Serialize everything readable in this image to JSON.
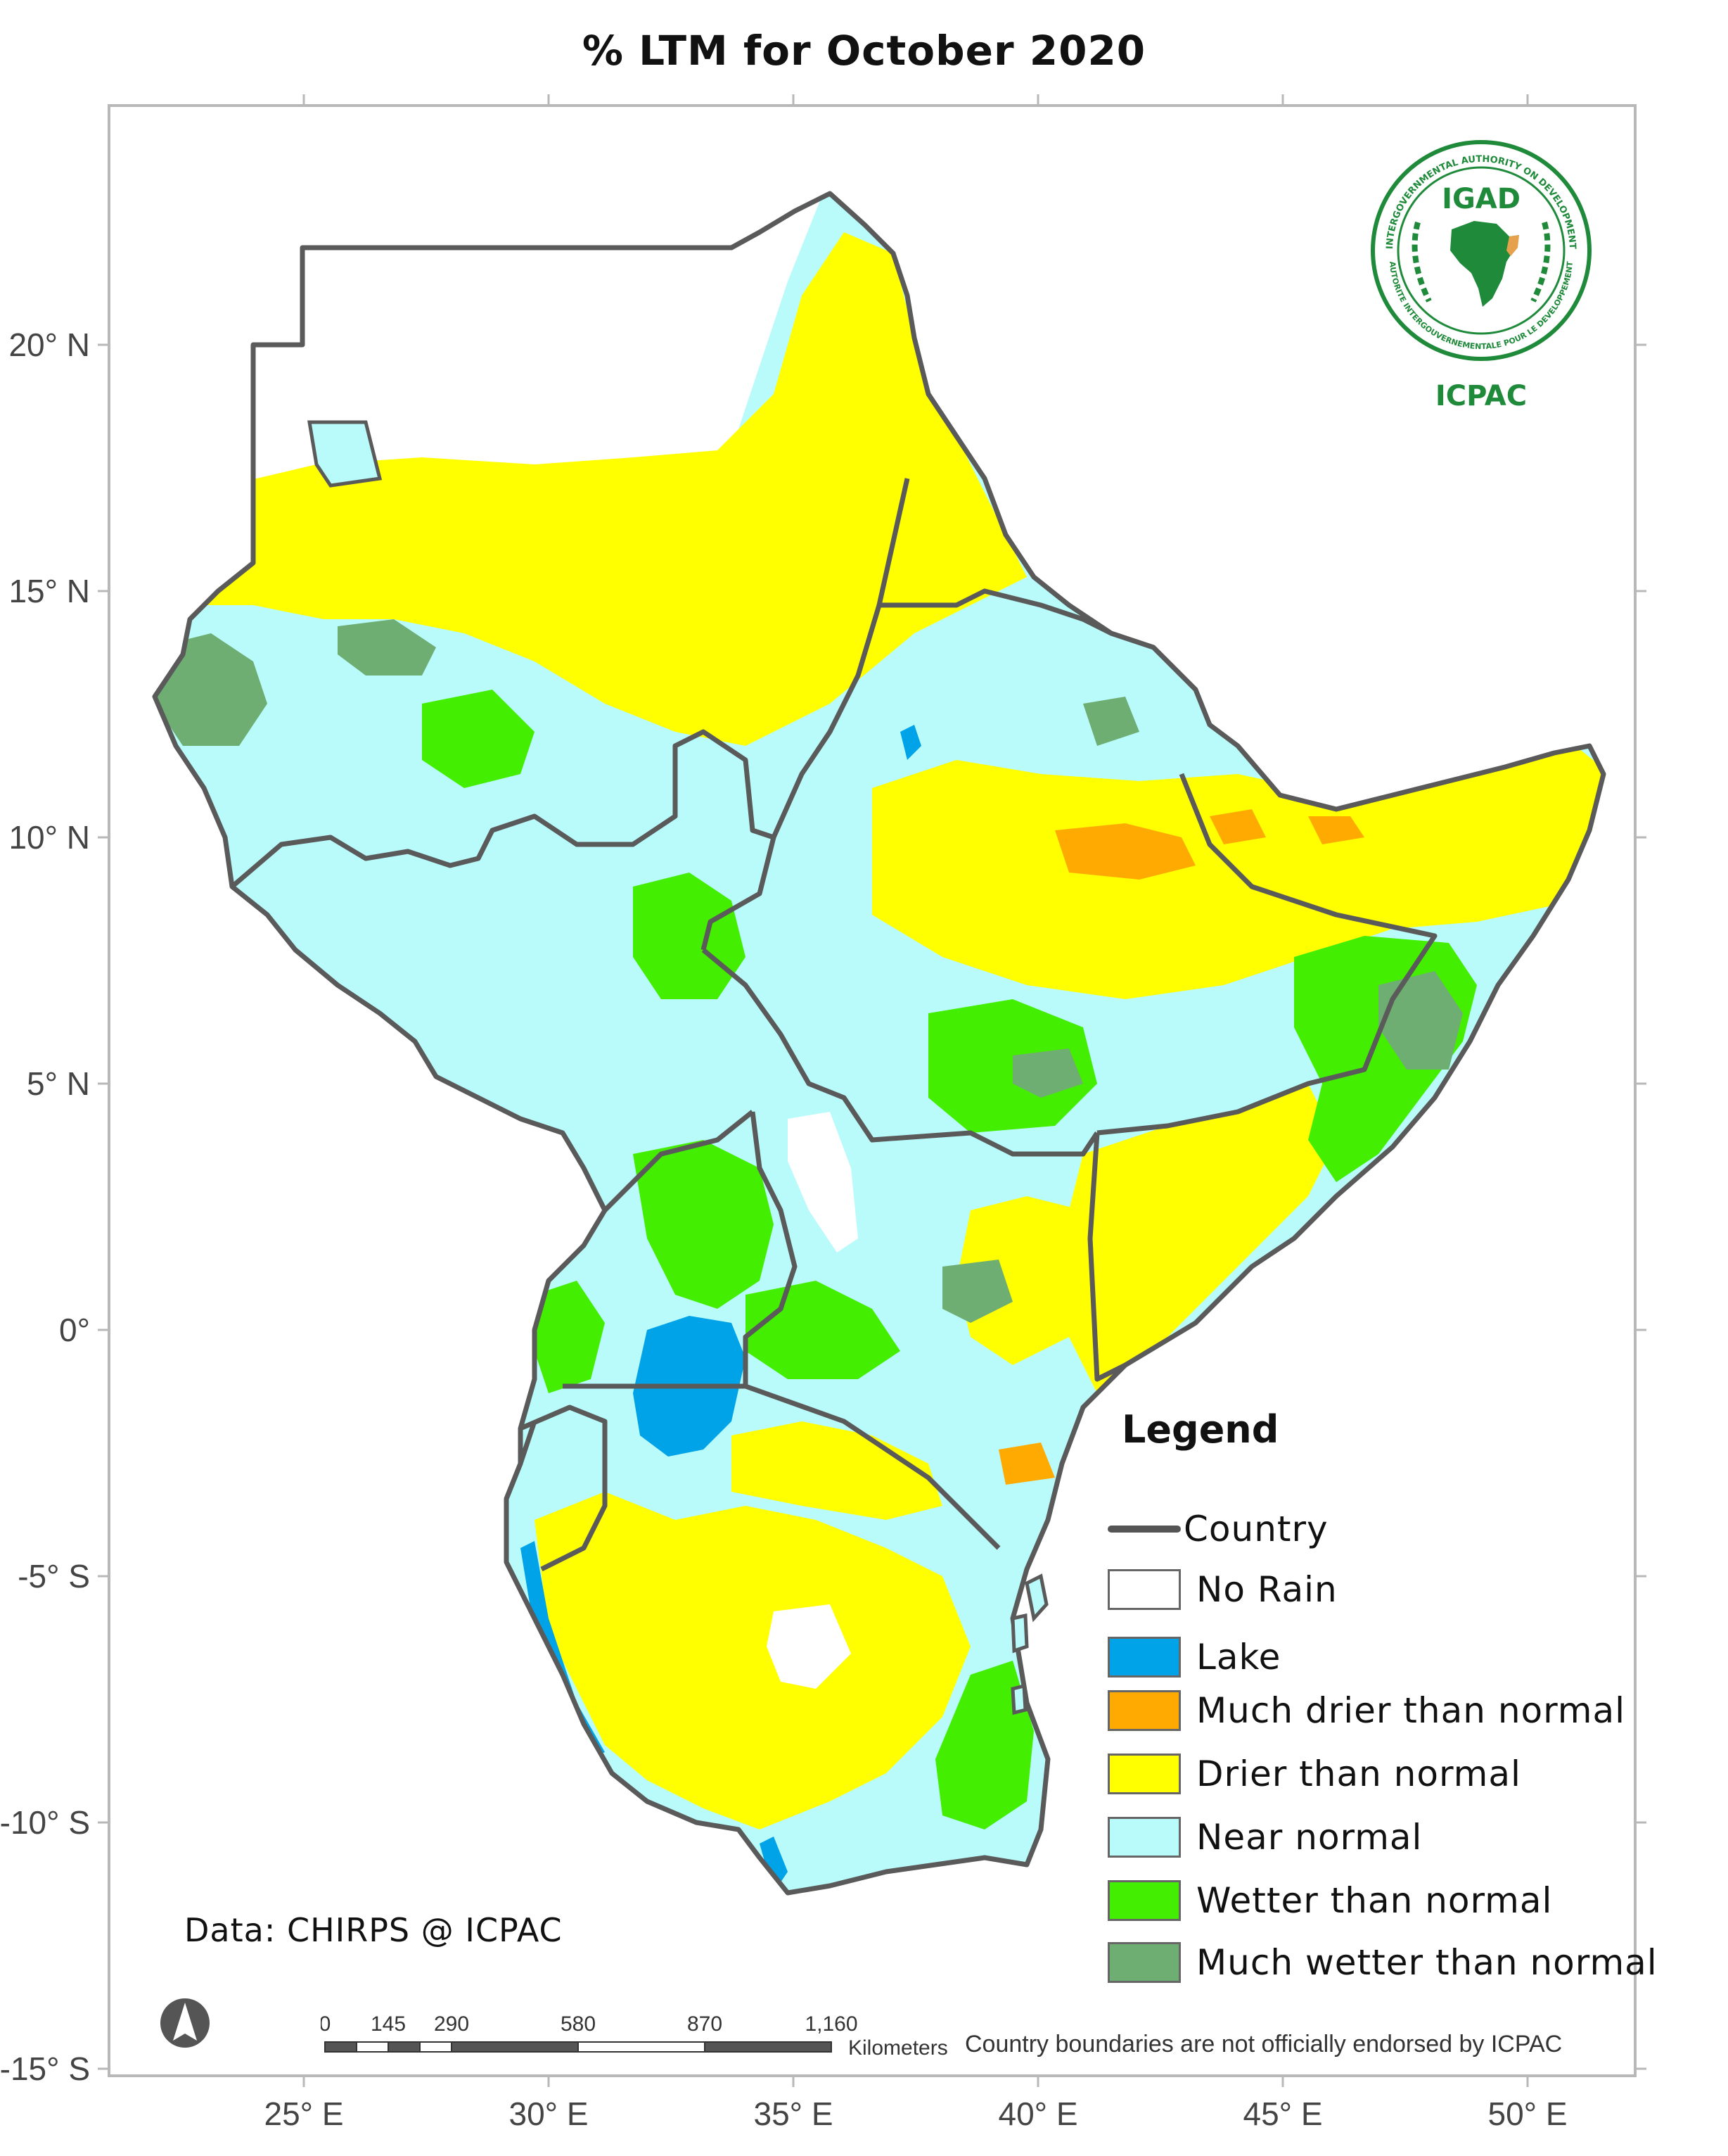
{
  "title": "% LTM  for October 2020",
  "axes": {
    "x_ticks": [
      "25° E",
      "30° E",
      "35° E",
      "40° E",
      "45° E",
      "50° E"
    ],
    "y_ticks": [
      "20° N",
      "15° N",
      "10° N",
      "5° N",
      "0°",
      "-5° S",
      "-10° S",
      "-15° S"
    ]
  },
  "logo": {
    "acronym": "IGAD",
    "ring_text_top": "INTERGOVERNMENTAL AUTHORITY ON DEVELOPMENT",
    "ring_text_bottom": "AUTORITE INTERGOUVERNEMENTALE POUR LE DEVELOPPEMENT",
    "caption": "ICPAC",
    "color": "#1e8a3a"
  },
  "legend": {
    "title": "Legend",
    "country_label": "Country",
    "items": [
      {
        "label": "No Rain",
        "color": "#ffffff"
      },
      {
        "label": "Lake",
        "color": "#00a2e8"
      },
      {
        "label": "Much drier than normal",
        "color": "#ffaa00"
      },
      {
        "label": "Drier than normal",
        "color": "#ffff00"
      },
      {
        "label": "Near normal",
        "color": "#b9fbfb"
      },
      {
        "label": "Wetter than normal",
        "color": "#44ee00"
      },
      {
        "label": "Much wetter than normal",
        "color": "#6fae72"
      }
    ]
  },
  "scale": {
    "labels": [
      "0",
      "145",
      "290",
      "580",
      "870",
      "1,160"
    ],
    "unit": "Kilometers"
  },
  "credit": "Data: CHIRPS @ ICPAC",
  "disclaimer": "Country boundaries are not officially endorsed by ICPAC",
  "colors": {
    "border": "#5a5a5a",
    "no_rain": "#ffffff",
    "lake": "#00a2e8",
    "much_drier": "#ffaa00",
    "drier": "#ffff00",
    "near_normal": "#b9fbfb",
    "wetter": "#44ee00",
    "much_wetter": "#6fae72"
  }
}
